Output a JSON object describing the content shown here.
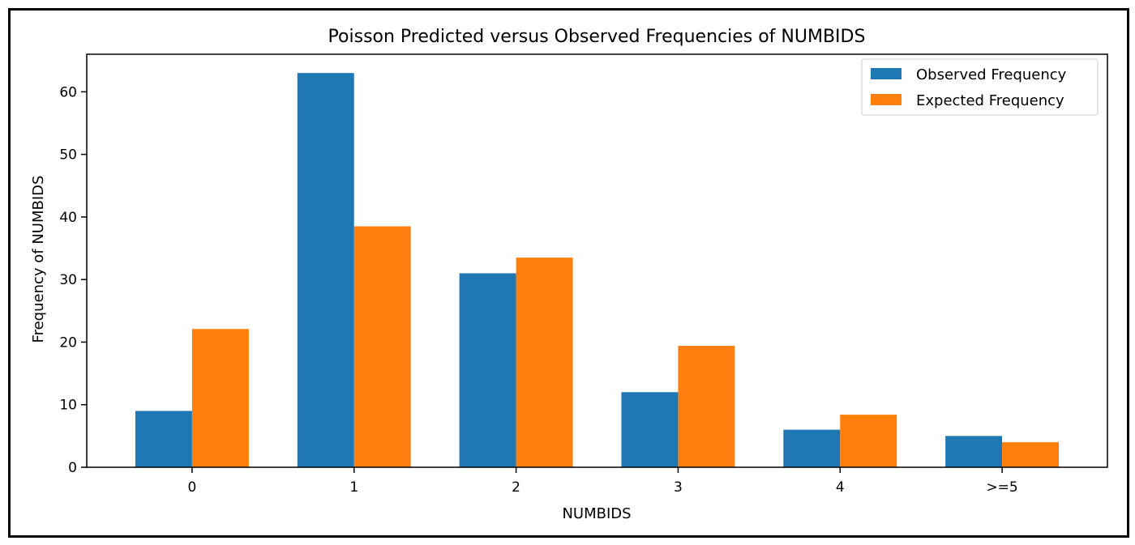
{
  "chart_data": {
    "type": "bar",
    "title": "Poisson Predicted versus Observed Frequencies of NUMBIDS",
    "xlabel": "NUMBIDS",
    "ylabel": "Frequency of NUMBIDS",
    "categories": [
      "0",
      "1",
      "2",
      "3",
      "4",
      ">=5"
    ],
    "series": [
      {
        "name": "Observed Frequency",
        "color": "#1f77b4",
        "values": [
          9,
          63,
          31,
          12,
          6,
          5
        ]
      },
      {
        "name": "Expected Frequency",
        "color": "#ff7f0e",
        "values": [
          22.1,
          38.5,
          33.5,
          19.4,
          8.4,
          4.0
        ]
      }
    ],
    "ylim": [
      0,
      66
    ],
    "yticks": [
      0,
      10,
      20,
      30,
      40,
      50,
      60
    ],
    "grid": false,
    "legend_position": "top-right"
  }
}
